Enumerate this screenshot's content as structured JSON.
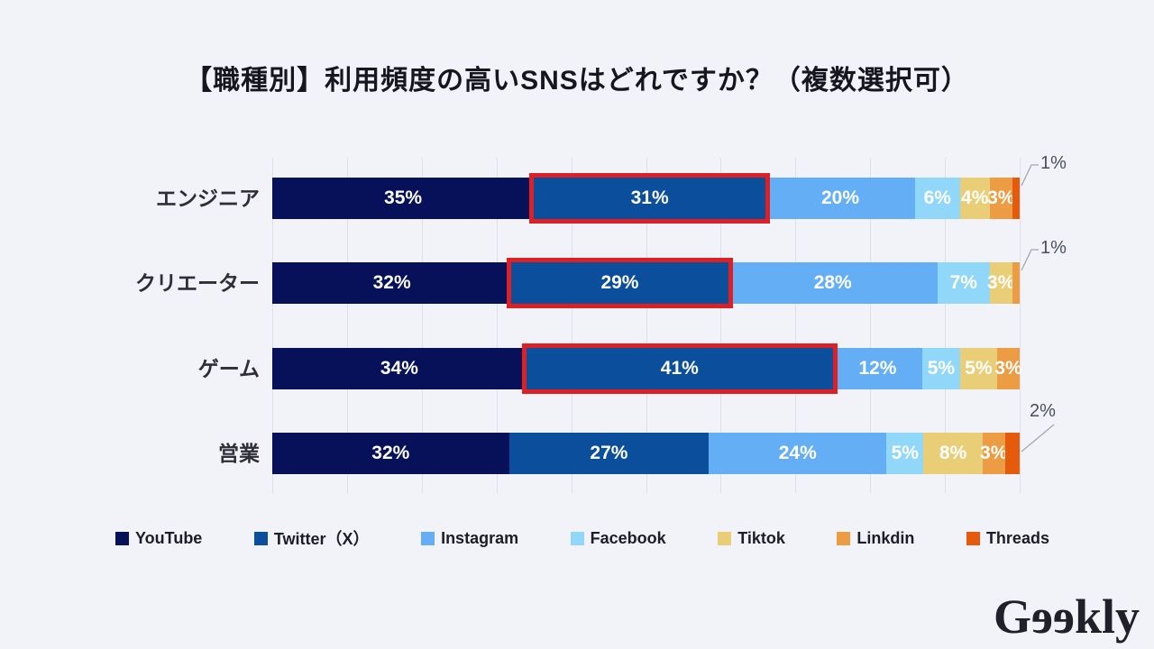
{
  "title": "【職種別】利用頻度の高いSNSはどれですか？（複数選択可）",
  "logo": {
    "prefix": "G",
    "mirrored": "ee",
    "suffix": "kly"
  },
  "chart_data": {
    "type": "bar",
    "stacked": true,
    "orientation": "horizontal",
    "title": "【職種別】利用頻度の高いSNSはどれですか？（複数選択可）",
    "categories": [
      "エンジニア",
      "クリエーター",
      "ゲーム",
      "営業"
    ],
    "series": [
      {
        "name": "YouTube",
        "color": "#071159",
        "values": [
          35,
          32,
          34,
          32
        ]
      },
      {
        "name": "Twitter（X）",
        "color": "#0a4e9c",
        "values": [
          31,
          29,
          41,
          27
        ]
      },
      {
        "name": "Instagram",
        "color": "#64aef6",
        "values": [
          20,
          28,
          12,
          24
        ]
      },
      {
        "name": "Facebook",
        "color": "#90d7f9",
        "values": [
          6,
          7,
          5,
          5
        ]
      },
      {
        "name": "Tiktok",
        "color": "#eace77",
        "values": [
          4,
          3,
          5,
          8
        ]
      },
      {
        "name": "Linkdin",
        "color": "#ec9d44",
        "values": [
          3,
          1,
          3,
          3
        ]
      },
      {
        "name": "Threads",
        "color": "#e55a0b",
        "values": [
          1,
          0,
          0,
          2
        ]
      }
    ],
    "value_suffix": "%",
    "xlim": [
      0,
      100
    ],
    "gridline_interval": 10,
    "grid": true,
    "legend_position": "bottom",
    "callouts": [
      {
        "category_index": 0,
        "series_index": 6,
        "label": "1%"
      },
      {
        "category_index": 1,
        "series_index": 5,
        "label": "1%"
      },
      {
        "category_index": 3,
        "series_index": 6,
        "label": "2%"
      }
    ],
    "highlights": [
      {
        "category_index": 0,
        "series_index": 1
      },
      {
        "category_index": 1,
        "series_index": 1
      },
      {
        "category_index": 2,
        "series_index": 1
      }
    ],
    "highlight_color": "#dc2026"
  }
}
